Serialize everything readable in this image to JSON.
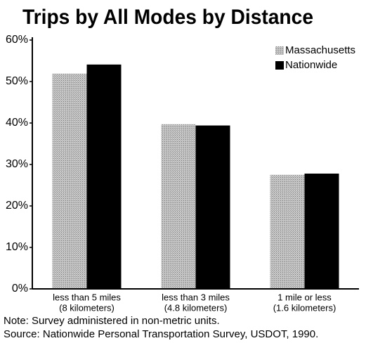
{
  "chart_data": {
    "type": "bar",
    "title": "Trips by All Modes by Distance",
    "categories": [
      [
        "less than 5 miles",
        "(8 kilometers)"
      ],
      [
        "less than 3 miles",
        "(4.8 kilometers)"
      ],
      [
        "1 mile or less",
        "(1.6 kilometers)"
      ]
    ],
    "series": [
      {
        "name": "Massachusetts",
        "color": "#b5b5b5",
        "values": [
          51.9,
          39.7,
          27.5
        ]
      },
      {
        "name": "Nationwide",
        "color": "#000000",
        "values": [
          54.1,
          39.4,
          27.8
        ]
      }
    ],
    "ylim": [
      0,
      60
    ],
    "yticks": [
      {
        "value": 0,
        "label": "0%"
      },
      {
        "value": 10,
        "label": "10%"
      },
      {
        "value": 20,
        "label": "20%"
      },
      {
        "value": 30,
        "label": "30%"
      },
      {
        "value": 40,
        "label": "40%"
      },
      {
        "value": 50,
        "label": "50%"
      },
      {
        "value": 60,
        "label": "60%"
      }
    ],
    "notes": [
      "Note: Survey administered in non-metric units.",
      "Source: Nationwide Personal Transportation Survey, USDOT, 1990."
    ]
  }
}
